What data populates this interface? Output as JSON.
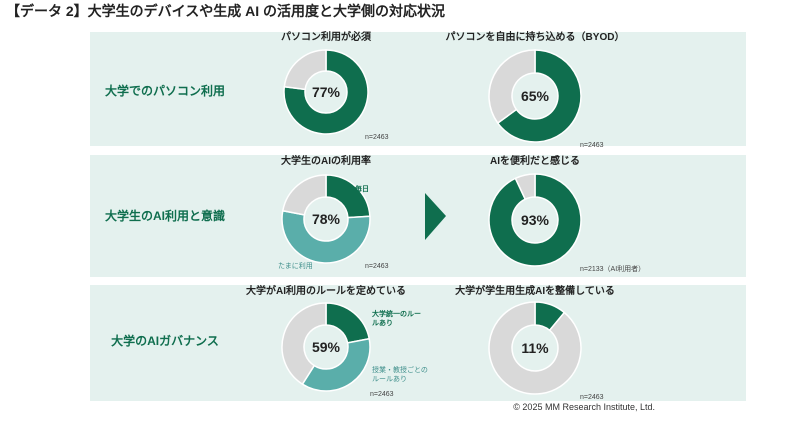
{
  "title": "【データ 2】大学生のデバイスや生成 AI の活用度と大学側の対応状況",
  "rows": [
    "大学でのパソコン利用",
    "大学生のAI利用と意識",
    "大学のAIガバナンス"
  ],
  "footer": "© 2025 MM Research Institute, Ltd.",
  "chart_data": [
    {
      "type": "pie",
      "title": "パソコン利用が必須",
      "categories": [
        null,
        null
      ],
      "values": [
        77,
        23
      ],
      "colors": [
        "#0f6e4e",
        "#d9d9d9"
      ],
      "center": {
        "value": 77,
        "label": "77%"
      },
      "note": "n=2463"
    },
    {
      "type": "pie",
      "title": "パソコンを自由に持ち込める（BYOD）",
      "categories": [
        null,
        null
      ],
      "values": [
        65,
        35
      ],
      "colors": [
        "#0f6e4e",
        "#d9d9d9"
      ],
      "center": {
        "value": 65,
        "label": "65%"
      },
      "note": "n=2463"
    },
    {
      "type": "pie",
      "title": "大学生のAIの利用率",
      "categories": [
        "毎日",
        "たまに利用",
        null
      ],
      "values": [
        24,
        54,
        22
      ],
      "colors": [
        "#0f6e4e",
        "#5aaeaa",
        "#d9d9d9"
      ],
      "center": {
        "value": 78,
        "label": "78%"
      },
      "note": "n=2463"
    },
    {
      "type": "pie",
      "title": "AIを便利だと感じる",
      "categories": [
        null,
        null
      ],
      "values": [
        93,
        7
      ],
      "colors": [
        "#0f6e4e",
        "#d9d9d9"
      ],
      "center": {
        "value": 93,
        "label": "93%"
      },
      "note": "n=2133（AI利用者）"
    },
    {
      "type": "pie",
      "title": "大学がAI利用のルールを定めている",
      "categories": [
        "大学統一のルールあり",
        "授業・教授ごとのルールあり",
        null
      ],
      "values": [
        22,
        37,
        41
      ],
      "colors": [
        "#0f6e4e",
        "#5aaeaa",
        "#d9d9d9"
      ],
      "center": {
        "value": 59,
        "label": "59%"
      },
      "note": "n=2463"
    },
    {
      "type": "pie",
      "title": "大学が学生用生成AIを整備している",
      "categories": [
        null,
        null
      ],
      "values": [
        11,
        89
      ],
      "colors": [
        "#0f6e4e",
        "#d9d9d9"
      ],
      "center": {
        "value": 11,
        "label": "11%"
      },
      "note": "n=2463"
    }
  ]
}
